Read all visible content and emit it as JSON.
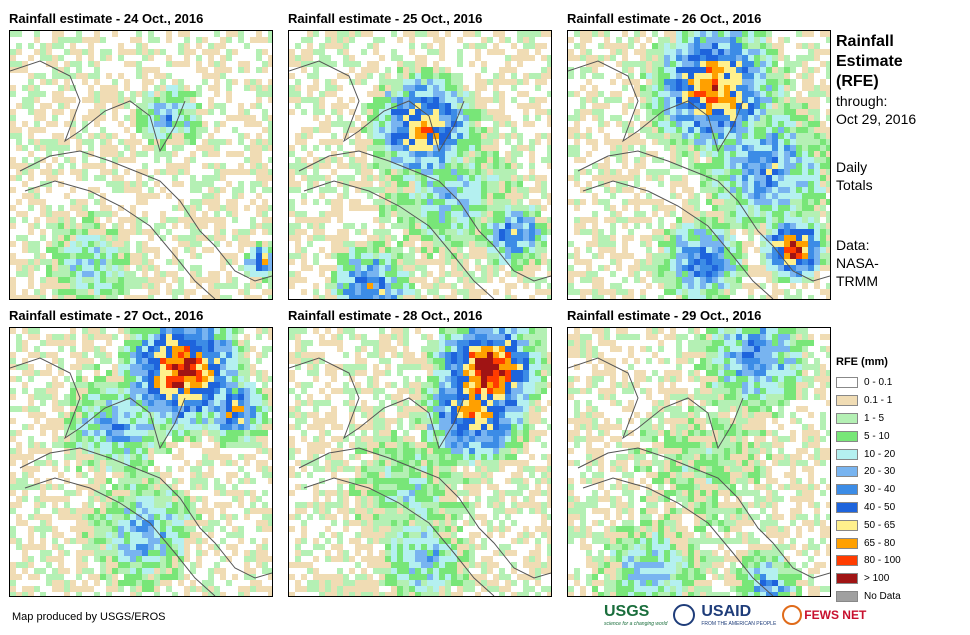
{
  "panels": [
    {
      "title": "Rainfall estimate - 24 Oct., 2016"
    },
    {
      "title": "Rainfall estimate - 25 Oct., 2016"
    },
    {
      "title": "Rainfall estimate - 26 Oct., 2016"
    },
    {
      "title": "Rainfall estimate - 27 Oct., 2016"
    },
    {
      "title": "Rainfall estimate - 28 Oct., 2016"
    },
    {
      "title": "Rainfall estimate - 29 Oct., 2016"
    }
  ],
  "side": {
    "title_line1": "Rainfall",
    "title_line2": "Estimate",
    "title_line3": "(RFE)",
    "through_label": "through:",
    "through_date": "Oct 29, 2016",
    "totals_line1": "Daily",
    "totals_line2": "Totals",
    "data_label": "Data:",
    "data_source1": "NASA-",
    "data_source2": "TRMM"
  },
  "legend": {
    "title": "RFE (mm)",
    "items": [
      {
        "label": "0 - 0.1",
        "color": "#ffffff"
      },
      {
        "label": "0.1 - 1",
        "color": "#f0dcb4"
      },
      {
        "label": "1 - 5",
        "color": "#b4f0b4"
      },
      {
        "label": "5 - 10",
        "color": "#78e678"
      },
      {
        "label": "10 - 20",
        "color": "#b4f0f0"
      },
      {
        "label": "20 - 30",
        "color": "#78b4f0"
      },
      {
        "label": "30 - 40",
        "color": "#3c8ce6"
      },
      {
        "label": "40 - 50",
        "color": "#1e64dc"
      },
      {
        "label": "50 - 65",
        "color": "#fff08c"
      },
      {
        "label": "65 - 80",
        "color": "#ffa000"
      },
      {
        "label": "80 - 100",
        "color": "#ff3c00"
      },
      {
        "label": "> 100",
        "color": "#a01414"
      },
      {
        "label": "No Data",
        "color": "#a0a0a0"
      }
    ]
  },
  "footer": {
    "credit": "Map produced by USGS/EROS",
    "logo_usgs": "USGS",
    "logo_usgs_tag": "science for a changing world",
    "logo_usaid": "USAID",
    "logo_usaid_tag": "FROM THE AMERICAN PEOPLE",
    "logo_fews": "FEWS NET"
  }
}
